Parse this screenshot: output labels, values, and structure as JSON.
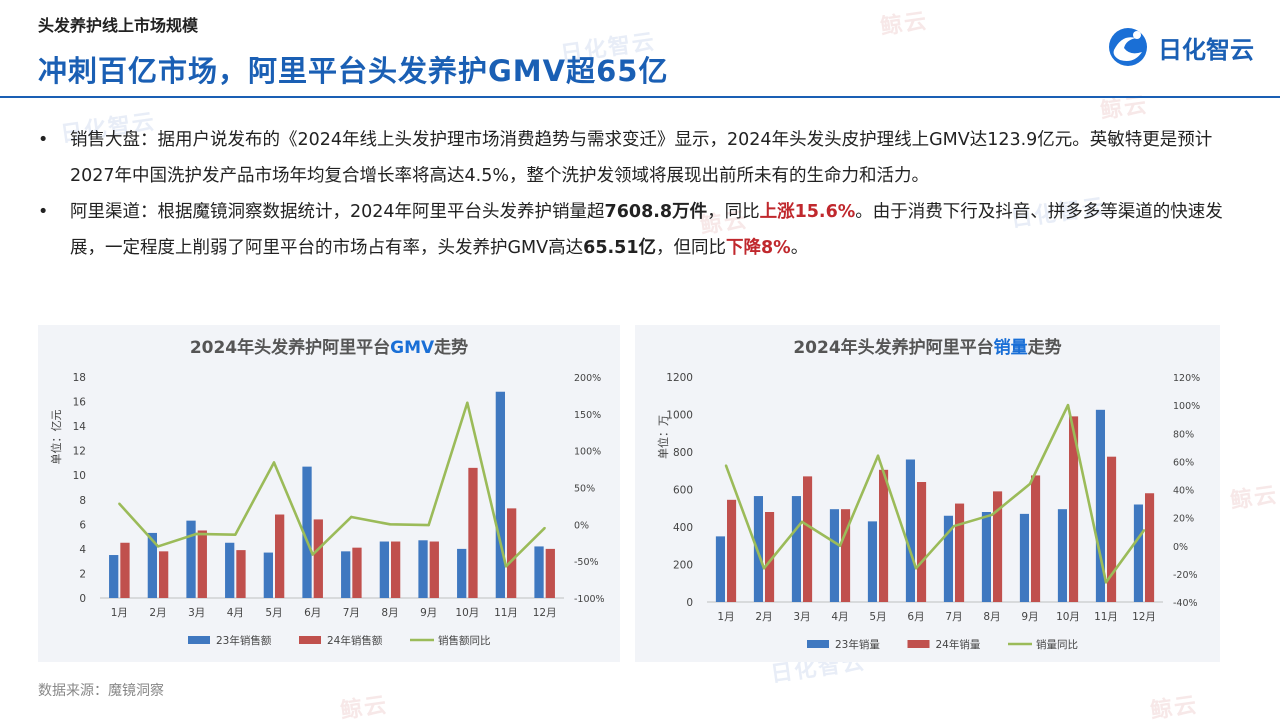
{
  "header": {
    "section_title": "头发养护线上市场规模",
    "main_title": "冲刺百亿市场，阿里平台头发养护GMV超65亿",
    "logo_text": "日化智云"
  },
  "watermark": {
    "text_a": "鲸云",
    "text_b": "日化智云"
  },
  "bullets": [
    {
      "marker": "•",
      "text": "销售大盘：据用户说发布的《2024年线上头发护理市场消费趋势与需求变迁》显示，2024年头发头皮护理线上GMV达123.9亿元。英敏特更是预计2027年中国洗护发产品市场年均复合增长率将高达4.5%，整个洗护发领域将展现出前所未有的生命力和活力。"
    },
    {
      "marker": "•",
      "t1": "阿里渠道：根据魔镜洞察数据统计，2024年阿里平台头发养护销量超",
      "b1": "7608.8万件",
      "t2": "，同比",
      "b2": "上涨15.6%",
      "t3": "。由于消费下行及抖音、拼多多等渠道的快速发展，一定程度上削弱了阿里平台的市场占有率，头发养护GMV高达",
      "b3": "65.51亿",
      "t4": "，但同比",
      "b4": "下降8%",
      "t5": "。"
    }
  ],
  "source": "数据来源：魔镜洞察",
  "colors": {
    "blue": "#3f78c0",
    "red": "#c0504d",
    "green": "#9bbb59",
    "title_blue": "#1a5fb4"
  },
  "chart_data": [
    {
      "type": "bar",
      "title_prefix": "2024年头发养护阿里平台",
      "title_highlight": "GMV",
      "title_suffix": "走势",
      "ylabel": "单位：亿元",
      "categories": [
        "1月",
        "2月",
        "3月",
        "4月",
        "5月",
        "6月",
        "7月",
        "8月",
        "9月",
        "10月",
        "11月",
        "12月"
      ],
      "ylim": [
        0,
        18
      ],
      "yticks": [
        0,
        2,
        4,
        6,
        8,
        10,
        12,
        14,
        16,
        18
      ],
      "y2lim": [
        -100,
        200
      ],
      "y2ticks": [
        "-100%",
        "-50%",
        "0%",
        "50%",
        "100%",
        "150%",
        "200%"
      ],
      "series": [
        {
          "name": "23年销售额",
          "kind": "bar",
          "values": [
            3.5,
            5.3,
            6.3,
            4.5,
            3.7,
            10.7,
            3.8,
            4.6,
            4.7,
            4.0,
            16.8,
            4.2
          ]
        },
        {
          "name": "24年销售额",
          "kind": "bar",
          "values": [
            4.5,
            3.8,
            5.5,
            3.9,
            6.8,
            6.4,
            4.1,
            4.6,
            4.6,
            10.6,
            7.3,
            4.0
          ]
        },
        {
          "name": "销售额同比",
          "kind": "line",
          "axis": "right",
          "values": [
            28,
            -30,
            -13,
            -14,
            84,
            -41,
            10,
            0,
            -1,
            165,
            -57,
            -5
          ]
        }
      ]
    },
    {
      "type": "bar",
      "title_prefix": "2024年头发养护阿里平台",
      "title_highlight": "销量",
      "title_suffix": "走势",
      "ylabel": "单位：万",
      "categories": [
        "1月",
        "2月",
        "3月",
        "4月",
        "5月",
        "6月",
        "7月",
        "8月",
        "9月",
        "10月",
        "11月",
        "12月"
      ],
      "ylim": [
        0,
        1200
      ],
      "yticks": [
        0,
        200,
        400,
        600,
        800,
        1000,
        1200
      ],
      "y2lim": [
        -40,
        120
      ],
      "y2ticks": [
        "-40%",
        "-20%",
        "0%",
        "20%",
        "40%",
        "60%",
        "80%",
        "100%",
        "120%"
      ],
      "series": [
        {
          "name": "23年销量",
          "kind": "bar",
          "values": [
            350,
            565,
            565,
            495,
            430,
            760,
            460,
            480,
            470,
            495,
            1025,
            520
          ]
        },
        {
          "name": "24年销量",
          "kind": "bar",
          "values": [
            545,
            480,
            670,
            495,
            705,
            640,
            525,
            590,
            675,
            990,
            775,
            580
          ]
        },
        {
          "name": "销量同比",
          "kind": "line",
          "axis": "right",
          "values": [
            57,
            -16,
            17,
            0,
            64,
            -16,
            14,
            22,
            44,
            100,
            -26,
            11
          ]
        }
      ]
    }
  ]
}
